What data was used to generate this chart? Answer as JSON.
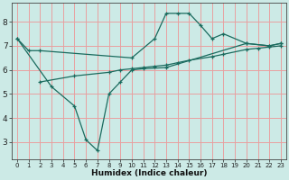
{
  "bg_color": "#cceae6",
  "grid_color": "#e8a0a0",
  "line_color": "#1a6b5e",
  "xlabel": "Humidex (Indice chaleur)",
  "xlim": [
    -0.5,
    23.5
  ],
  "ylim": [
    2.3,
    8.8
  ],
  "yticks": [
    3,
    4,
    5,
    6,
    7,
    8
  ],
  "xticks": [
    0,
    1,
    2,
    3,
    4,
    5,
    6,
    7,
    8,
    9,
    10,
    11,
    12,
    13,
    14,
    15,
    16,
    17,
    18,
    19,
    20,
    21,
    22,
    23
  ],
  "line1_x": [
    0,
    1,
    2,
    10,
    12,
    13,
    14,
    15,
    16,
    17,
    18,
    20,
    22,
    23
  ],
  "line1_y": [
    7.3,
    6.8,
    6.8,
    6.5,
    7.3,
    8.35,
    8.35,
    8.35,
    7.85,
    7.3,
    7.5,
    7.1,
    7.0,
    7.1
  ],
  "line2_x": [
    0,
    3,
    5,
    6,
    7,
    8,
    9,
    10,
    11,
    13,
    20,
    22,
    23
  ],
  "line2_y": [
    7.3,
    5.3,
    4.5,
    3.1,
    2.65,
    5.0,
    5.5,
    6.0,
    6.05,
    6.1,
    7.1,
    7.0,
    7.1
  ],
  "line3_x": [
    2,
    5,
    8,
    9,
    10,
    11,
    12,
    13,
    14,
    15,
    17,
    18,
    20,
    21,
    22,
    23
  ],
  "line3_y": [
    5.5,
    5.75,
    5.9,
    6.0,
    6.05,
    6.1,
    6.15,
    6.2,
    6.3,
    6.4,
    6.55,
    6.65,
    6.85,
    6.9,
    6.95,
    7.0
  ]
}
